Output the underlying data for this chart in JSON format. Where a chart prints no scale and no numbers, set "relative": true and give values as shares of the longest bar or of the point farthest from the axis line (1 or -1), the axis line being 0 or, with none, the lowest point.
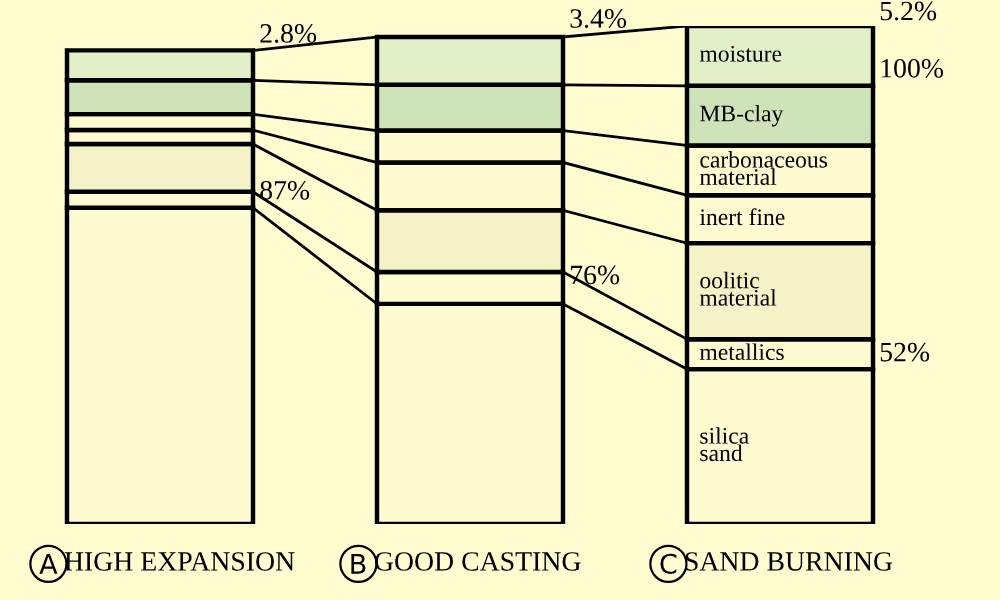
{
  "chart_data": {
    "type": "bar",
    "stacked": true,
    "relative": true,
    "categories": [
      "HIGH EXPANSION",
      "GOOD CASTING",
      "SAND BURNING"
    ],
    "series": [
      {
        "name": "silica\nsand",
        "color": "#fffbd0",
        "values": [
          0.635,
          0.442,
          0.311
        ]
      },
      {
        "name": "metallics",
        "color": "#fffbd0",
        "values": [
          0.032,
          0.064,
          0.06
        ]
      },
      {
        "name": "oolitic\nmaterial",
        "color": "#f6f2c8",
        "values": [
          0.096,
          0.124,
          0.193
        ]
      },
      {
        "name": "inert fine",
        "color": "#fffbd0",
        "values": [
          0.028,
          0.096,
          0.096
        ]
      },
      {
        "name": "carbonaceous\nmaterial",
        "color": "#fffbd0",
        "values": [
          0.032,
          0.064,
          0.1
        ]
      },
      {
        "name": "MB-clay",
        "color": "#cfe3b8",
        "values": [
          0.068,
          0.092,
          0.12
        ]
      },
      {
        "name": "moisture",
        "color": "#e3efc6",
        "values": [
          0.06,
          0.096,
          0.12
        ]
      }
    ],
    "annotations": [
      "2.8%",
      "87%",
      "3.4%",
      "76%",
      "5.2%",
      "100%",
      "52%"
    ],
    "legend": false
  }
}
